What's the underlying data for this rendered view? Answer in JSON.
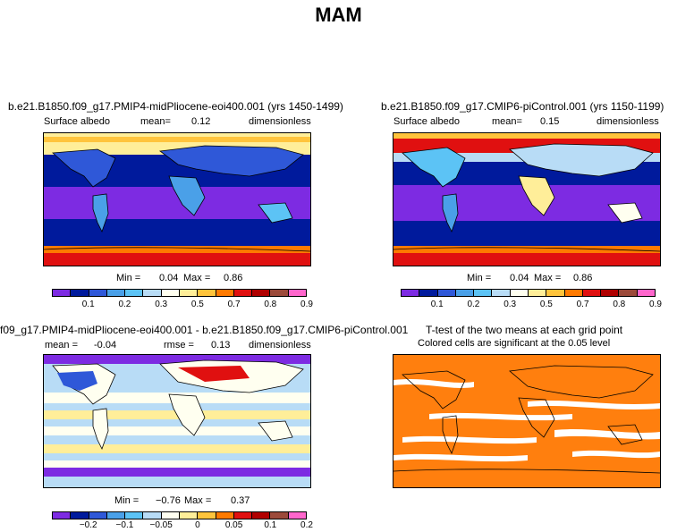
{
  "page": {
    "title": "MAM"
  },
  "colors": {
    "abs_levels": [
      "#7d2be2",
      "#001a9c",
      "#2f58d8",
      "#4aa0e8",
      "#5cc3f5",
      "#b8dcf6",
      "#fffff0",
      "#ffee99",
      "#ffc43c",
      "#ff7a00",
      "#e01010",
      "#b00000",
      "#9c4a3a",
      "#ff66cc"
    ],
    "diff_levels": [
      "#7d2be2",
      "#001a9c",
      "#2f58d8",
      "#4aa0e8",
      "#5cc3f5",
      "#b8dcf6",
      "#fffff0",
      "#ffee99",
      "#ffc43c",
      "#ff7a00",
      "#e01010",
      "#b00000",
      "#9c4a3a",
      "#ff66cc"
    ],
    "significant": "#ff7f0e"
  },
  "panels": {
    "top_left": {
      "title": "b.e21.B1850.f09_g17.PMIP4-midPliocene-eoi400.001 (yrs 1450-1499)",
      "variable": "Surface albedo",
      "mean_label": "mean=",
      "mean_value": "0.12",
      "units": "dimensionless",
      "min_label": "Min =",
      "min_value": "0.04",
      "max_label": "Max =",
      "max_value": "0.86",
      "colorbar_ticks": [
        "0.1",
        "0.2",
        "0.3",
        "0.5",
        "0.7",
        "0.8",
        "0.9"
      ]
    },
    "top_right": {
      "title": "b.e21.B1850.f09_g17.CMIP6-piControl.001 (yrs 1150-1199)",
      "variable": "Surface albedo",
      "mean_label": "mean=",
      "mean_value": "0.15",
      "units": "dimensionless",
      "min_label": "Min =",
      "min_value": "0.04",
      "max_label": "Max =",
      "max_value": "0.86",
      "colorbar_ticks": [
        "0.1",
        "0.2",
        "0.3",
        "0.5",
        "0.7",
        "0.8",
        "0.9"
      ]
    },
    "bottom_left": {
      "title": "f09_g17.PMIP4-midPliocene-eoi400.001 - b.e21.B1850.f09_g17.CMIP6-piControl.001",
      "mean_label": "mean =",
      "mean_value": "-0.04",
      "rmse_label": "rmse =",
      "rmse_value": "0.13",
      "units": "dimensionless",
      "min_label": "Min =",
      "min_value": "−0.76",
      "max_label": "Max =",
      "max_value": "0.37",
      "colorbar_ticks": [
        "−0.2",
        "−0.1",
        "−0.05",
        "0",
        "0.05",
        "0.1",
        "0.2"
      ]
    },
    "bottom_right": {
      "title": "T-test of the two means at each grid point",
      "subtitle": "Colored cells are significant at the 0.05 level"
    }
  }
}
